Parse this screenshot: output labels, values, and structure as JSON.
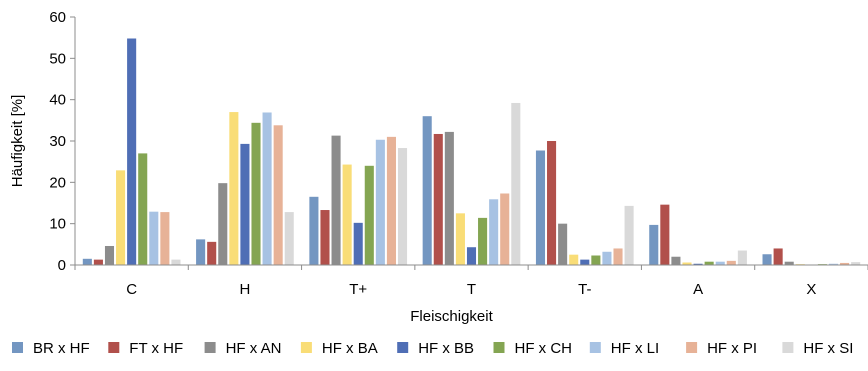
{
  "chart_data": {
    "type": "bar",
    "title": "",
    "xlabel": "Fleischigkeit",
    "ylabel": "Häufigkeit [%]",
    "ylim": [
      0,
      60
    ],
    "yticks": [
      0,
      10,
      20,
      30,
      40,
      50,
      60
    ],
    "grid": false,
    "legend_position": "bottom",
    "categories": [
      "C",
      "H",
      "T+",
      "T",
      "T-",
      "A",
      "X"
    ],
    "series": [
      {
        "name": "BR x HF",
        "color": "#7396c1",
        "values": [
          1.5,
          6.2,
          16.5,
          36.0,
          27.7,
          9.7,
          2.6
        ]
      },
      {
        "name": "FT x HF",
        "color": "#b1504b",
        "values": [
          1.3,
          5.6,
          13.3,
          31.7,
          30.0,
          14.6,
          4.0
        ]
      },
      {
        "name": "HF x AN",
        "color": "#8c8c8c",
        "values": [
          4.6,
          19.8,
          31.3,
          32.2,
          10.0,
          2.0,
          0.8
        ]
      },
      {
        "name": "HF x BA",
        "color": "#f9dd77",
        "values": [
          22.9,
          37.0,
          24.3,
          12.5,
          2.5,
          0.6,
          0.2
        ]
      },
      {
        "name": "HF x BB",
        "color": "#4f6eb5",
        "values": [
          54.8,
          29.3,
          10.2,
          4.3,
          1.3,
          0.3,
          0.0
        ]
      },
      {
        "name": "HF x CH",
        "color": "#84a552",
        "values": [
          27.0,
          34.4,
          24.0,
          11.4,
          2.3,
          0.8,
          0.2
        ]
      },
      {
        "name": "HF x LI",
        "color": "#a7c2e3",
        "values": [
          12.9,
          36.9,
          30.3,
          15.9,
          3.2,
          0.8,
          0.3
        ]
      },
      {
        "name": "HF x PI",
        "color": "#e7b297",
        "values": [
          12.8,
          33.8,
          31.0,
          17.3,
          4.0,
          1.0,
          0.5
        ]
      },
      {
        "name": "HF x SI",
        "color": "#d9d9d9",
        "values": [
          1.3,
          12.8,
          28.3,
          39.2,
          14.3,
          3.5,
          0.7
        ]
      }
    ]
  }
}
